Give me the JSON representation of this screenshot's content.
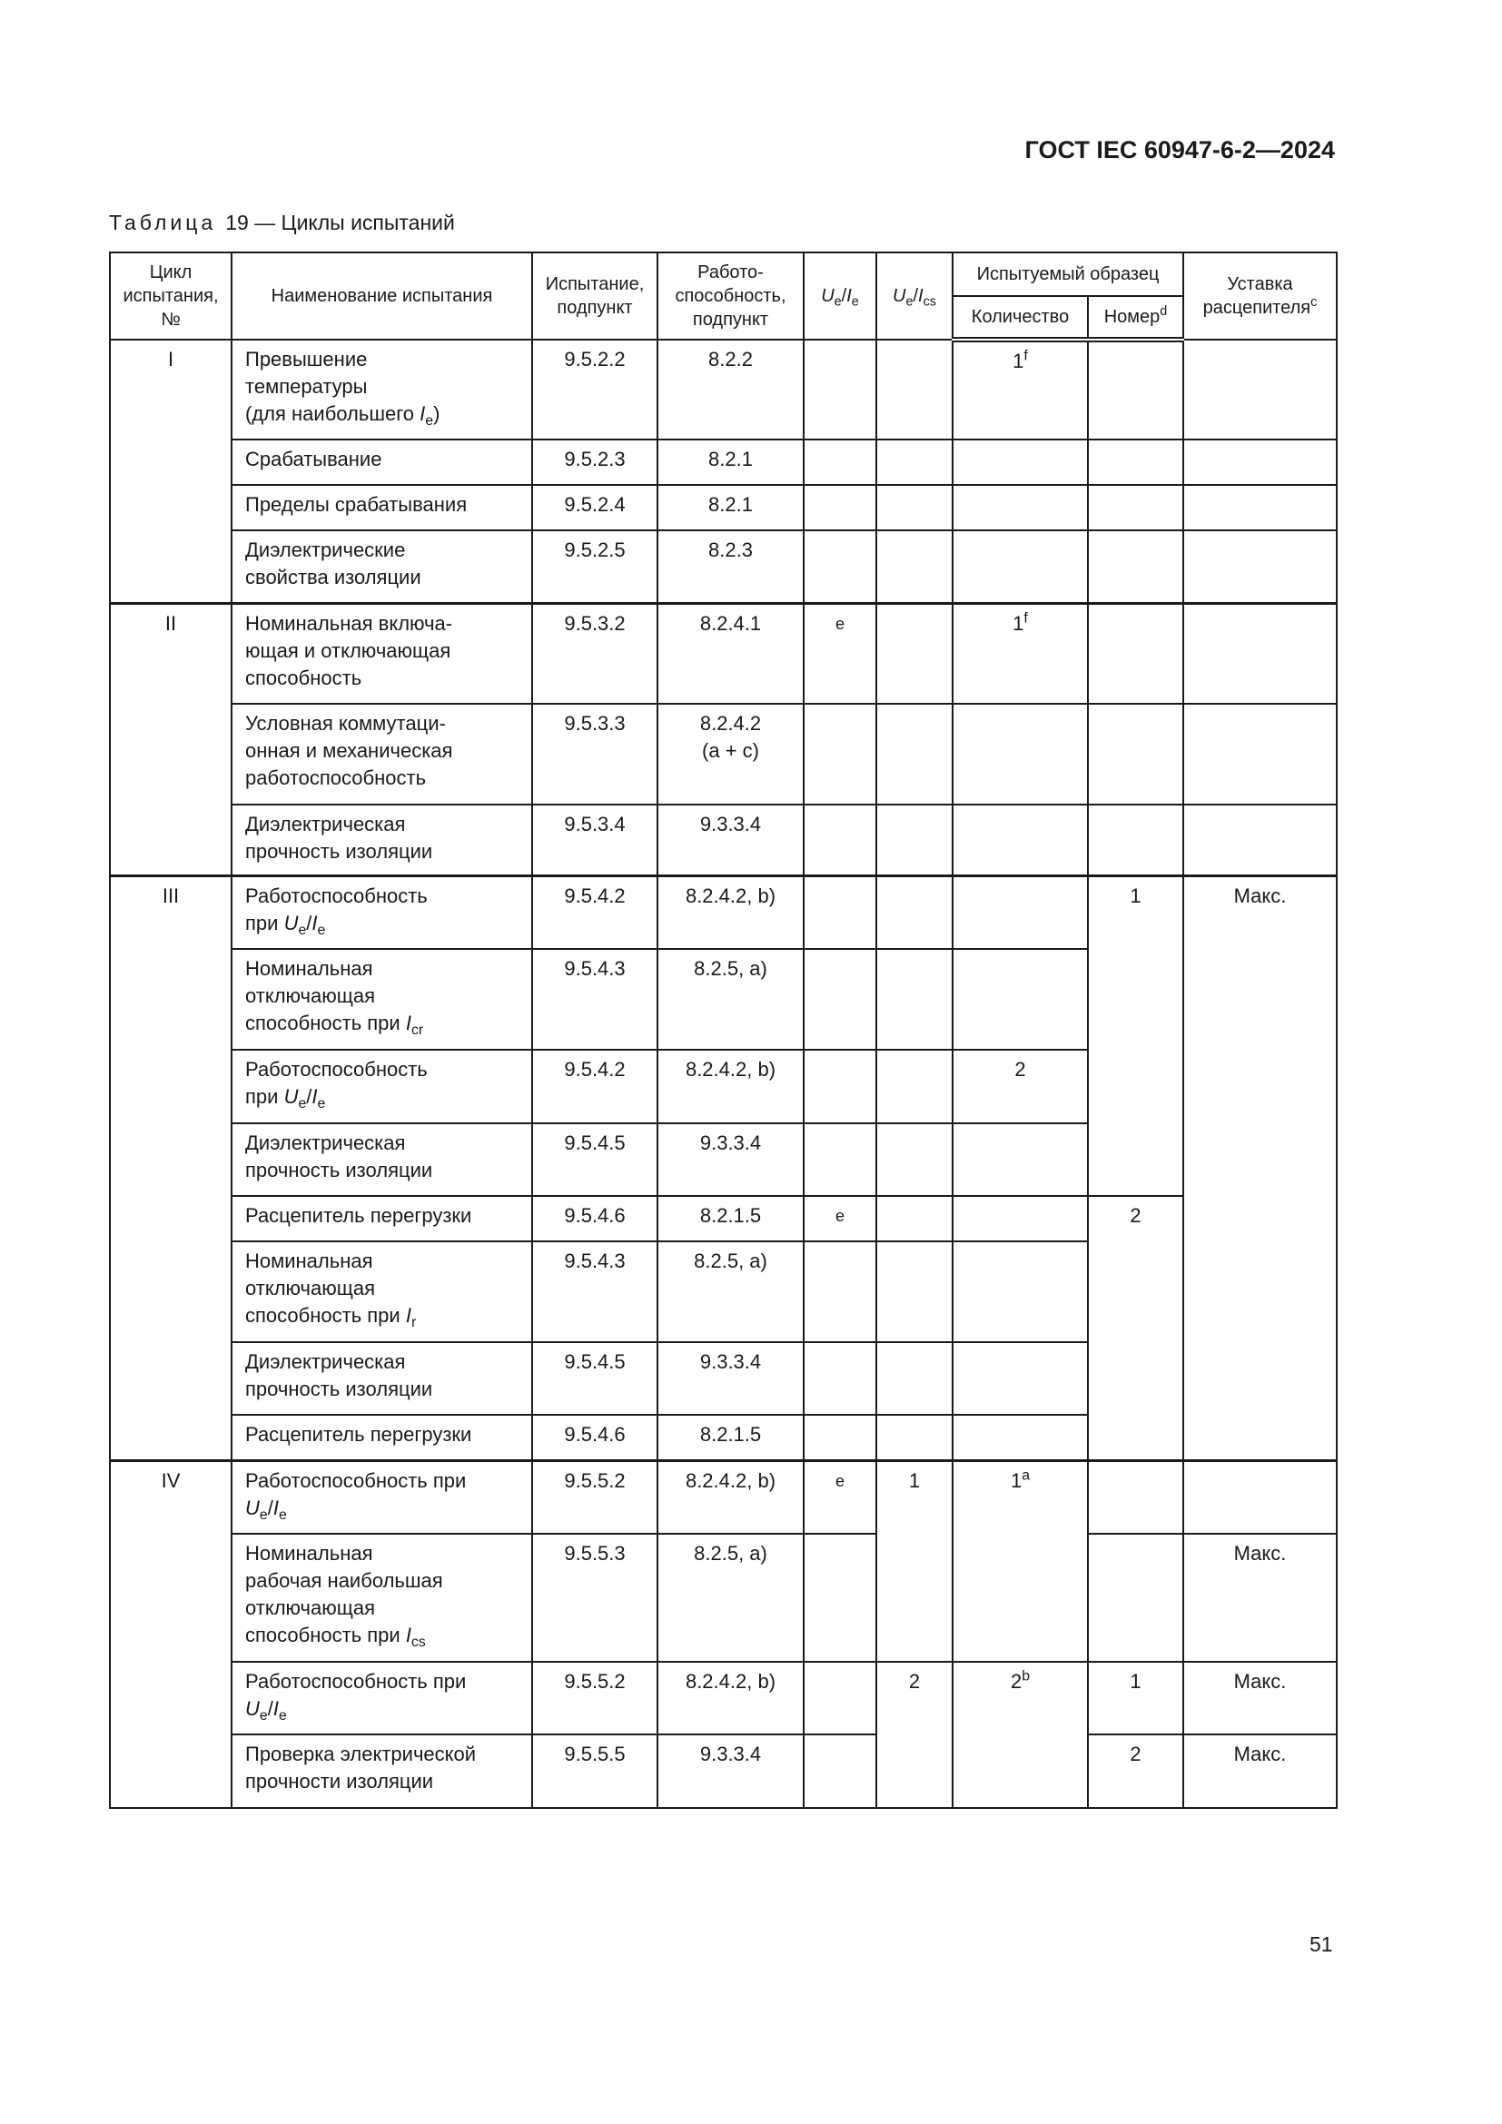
{
  "document_id": "ГОСТ IEC 60947-6-2—2024",
  "caption": {
    "label": "Таблица",
    "title": "19 — Циклы испытаний"
  },
  "page_number": "51",
  "table": {
    "header": {
      "cycle": "Цикл\nиспытания,\n№",
      "name": "Наименование испытания",
      "test": "Испытание,\nподпункт",
      "perf": "Работо-\nспособность,\nподпункт",
      "ue_ie": "{U|e}/{I|e}",
      "ue_ics": "{U|e}/{I|cs}",
      "sample": "Испытуемый образец",
      "qty": "Количество",
      "num": "Номер^d",
      "setting": "Уставка\nрасцепителя^c"
    },
    "rows": [
      {
        "cycle": "I",
        "name": "Превышение\nтемпературы\n(для наибольшего {I|e})",
        "test": "9.5.2.2",
        "perf": "8.2.2",
        "ue_ie": "",
        "ue_ics": "",
        "qty": "1^f",
        "num": "",
        "setting": ""
      },
      {
        "name": "Срабатывание",
        "test": "9.5.2.3",
        "perf": "8.2.1",
        "ue_ie": "",
        "ue_ics": "",
        "qty": "",
        "num": "",
        "setting": ""
      },
      {
        "name": "Пределы срабатывания",
        "test": "9.5.2.4",
        "perf": "8.2.1",
        "ue_ie": "",
        "ue_ics": "",
        "qty": "",
        "num": "",
        "setting": ""
      },
      {
        "name": "Диэлектрические\nсвойства изоляции",
        "test": "9.5.2.5",
        "perf": "8.2.3",
        "ue_ie": "",
        "ue_ics": "",
        "qty": "",
        "num": "",
        "setting": ""
      },
      {
        "cycle": "II",
        "name": "Номинальная включа-\nющая и отключающая\nспособность",
        "test": "9.5.3.2",
        "perf": "8.2.4.1",
        "ue_ie": "e",
        "ue_ics": "",
        "qty": "1^f",
        "num": "",
        "setting": ""
      },
      {
        "name": "Условная коммутаци-\nонная и механическая\nработоспособность",
        "test": "9.5.3.3",
        "perf": "8.2.4.2\n(a + c)",
        "ue_ie": "",
        "ue_ics": "",
        "qty": "",
        "num": "",
        "setting": ""
      },
      {
        "name": "Диэлектрическая\nпрочность изоляции",
        "test": "9.5.3.4",
        "perf": "9.3.3.4",
        "ue_ie": "",
        "ue_ics": "",
        "qty": "",
        "num": "",
        "setting": ""
      },
      {
        "cycle": "III",
        "name": "Работоспособность\nпри {U|e}/{I|e}",
        "test": "9.5.4.2",
        "perf": "8.2.4.2, b)",
        "ue_ie": "",
        "ue_ics": "",
        "qty": "",
        "num": "1",
        "setting": "Макс."
      },
      {
        "name": "Номинальная\nотключающая\nспособность при {I|cr}",
        "test": "9.5.4.3",
        "perf": "8.2.5, a)",
        "ue_ie": "",
        "ue_ics": "",
        "qty": ""
      },
      {
        "name": "Работоспособность\nпри {U|e}/{I|e}",
        "test": "9.5.4.2",
        "perf": "8.2.4.2, b)",
        "ue_ie": "",
        "ue_ics": "",
        "qty": "2"
      },
      {
        "name": "Диэлектрическая\nпрочность изоляции",
        "test": "9.5.4.5",
        "perf": "9.3.3.4",
        "ue_ie": "",
        "ue_ics": "",
        "qty": ""
      },
      {
        "name": "Расцепитель перегрузки",
        "test": "9.5.4.6",
        "perf": "8.2.1.5",
        "ue_ie": "e",
        "ue_ics": "",
        "qty": "",
        "num": "2"
      },
      {
        "name": "Номинальная\nотключающая\nспособность при {I|r}",
        "test": "9.5.4.3",
        "perf": "8.2.5, a)",
        "ue_ie": "",
        "ue_ics": "",
        "qty": ""
      },
      {
        "name": "Диэлектрическая\nпрочность изоляции",
        "test": "9.5.4.5",
        "perf": "9.3.3.4",
        "ue_ie": "",
        "ue_ics": "",
        "qty": ""
      },
      {
        "name": "Расцепитель перегрузки",
        "test": "9.5.4.6",
        "perf": "8.2.1.5",
        "ue_ie": "",
        "ue_ics": "",
        "qty": ""
      },
      {
        "cycle": "IV",
        "name": "Работоспособность при\n{U|e}/{I|e}",
        "test": "9.5.5.2",
        "perf": "8.2.4.2, b)",
        "ue_ie": "e",
        "ue_ics": "1",
        "qty": "1^a",
        "num": "",
        "setting": ""
      },
      {
        "name": "Номинальная\nрабочая наибольшая\nотключающая\nспособность при {I|cs}",
        "test": "9.5.5.3",
        "perf": "8.2.5, a)",
        "ue_ie": "",
        "num": "",
        "setting": "Макс."
      },
      {
        "name": "Работоспособность при\n{U|e}/{I|e}",
        "test": "9.5.5.2",
        "perf": "8.2.4.2, b)",
        "ue_ie": "",
        "ue_ics": "2",
        "qty": "2^b",
        "num": "1",
        "setting": "Макс."
      },
      {
        "name": "Проверка электрической\nпрочности изоляции",
        "test": "9.5.5.5",
        "perf": "9.3.3.4",
        "ue_ie": "",
        "num": "2",
        "setting": "Макс."
      }
    ]
  }
}
